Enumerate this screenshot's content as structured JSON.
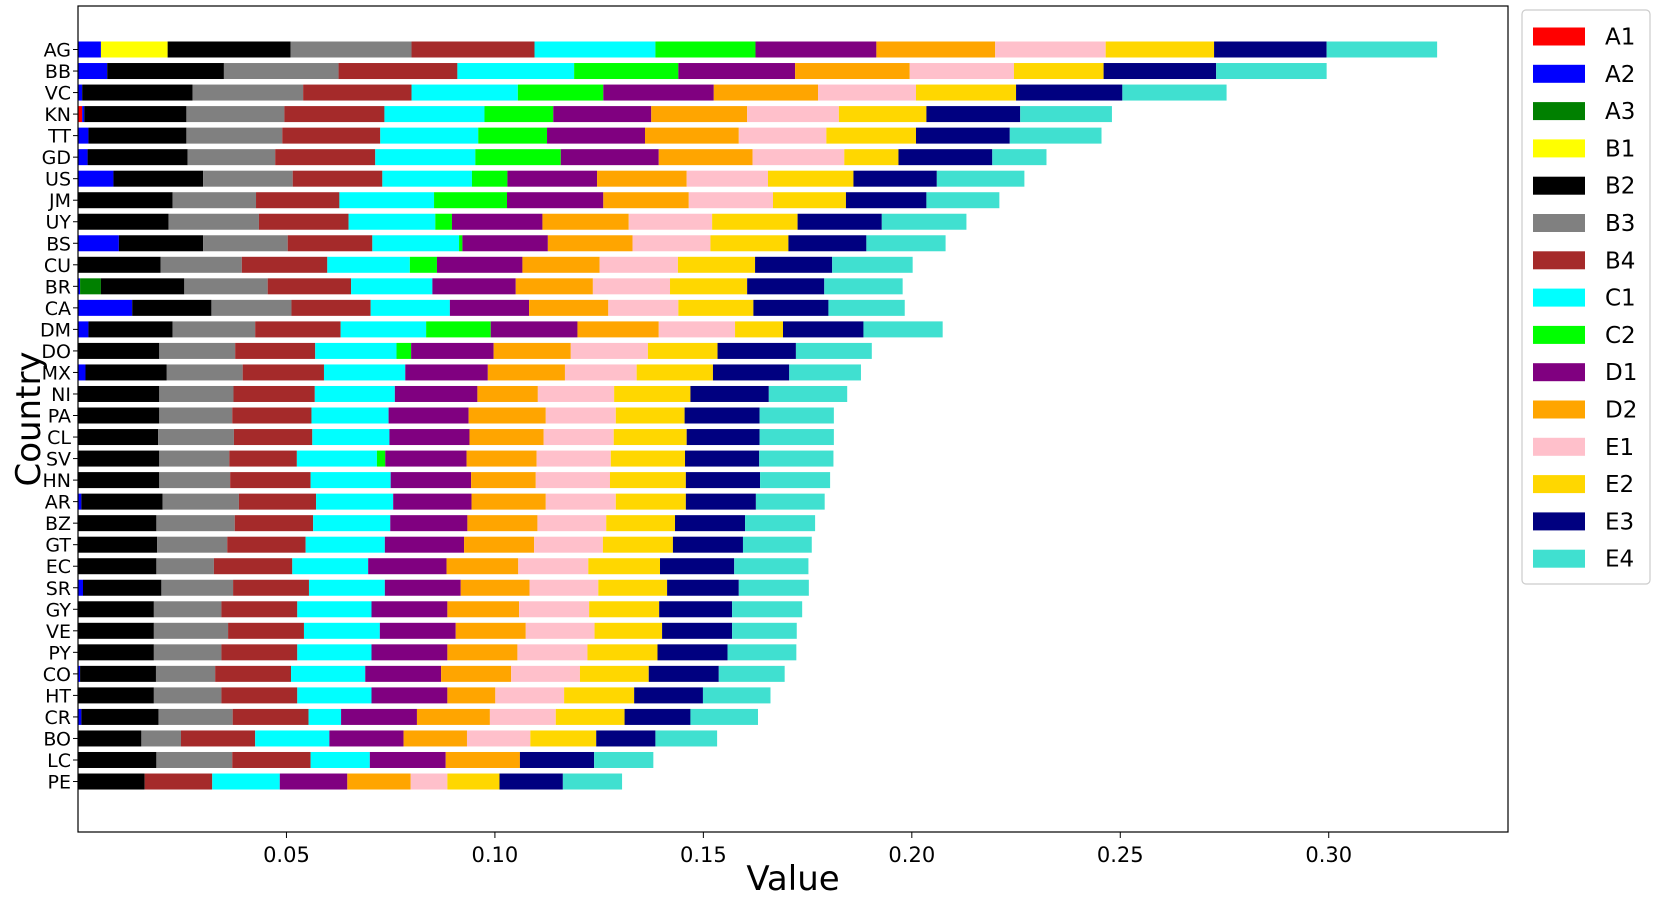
{
  "chart_data": {
    "type": "bar",
    "orientation": "horizontal",
    "stacked": true,
    "xlabel": "Value",
    "ylabel": "Country",
    "xlim": [
      0,
      0.343
    ],
    "xticks": [
      0.05,
      0.1,
      0.15,
      0.2,
      0.25,
      0.3
    ],
    "xtick_labels": [
      "0.05",
      "0.10",
      "0.15",
      "0.20",
      "0.25",
      "0.30"
    ],
    "legend_position": "top-right-outside",
    "series_names": [
      "A1",
      "A2",
      "A3",
      "B1",
      "B2",
      "B3",
      "B4",
      "C1",
      "C2",
      "D1",
      "D2",
      "E1",
      "E2",
      "E3",
      "E4"
    ],
    "colors": [
      "#ff0000",
      "#0000ff",
      "#008000",
      "#ffff00",
      "#000000",
      "#808080",
      "#a52a2a",
      "#00ffff",
      "#00ff00",
      "#800080",
      "#ffa500",
      "#ffc0cb",
      "#ffd700",
      "#000080",
      "#40e0d0"
    ],
    "categories": [
      "AG",
      "BB",
      "VC",
      "KN",
      "TT",
      "GD",
      "US",
      "JM",
      "UY",
      "BS",
      "CU",
      "BR",
      "CA",
      "DM",
      "DO",
      "MX",
      "NI",
      "PA",
      "CL",
      "SV",
      "HN",
      "AR",
      "BZ",
      "GT",
      "EC",
      "SR",
      "GY",
      "VE",
      "PY",
      "CO",
      "HT",
      "CR",
      "BO",
      "LC",
      "PE"
    ],
    "data": [
      [
        0,
        0.0055,
        0,
        0.016,
        0.0295,
        0.029,
        0.0295,
        0.029,
        0.024,
        0.029,
        0.0285,
        0.0265,
        0.026,
        0.027,
        0.0265
      ],
      [
        0,
        0.007,
        0,
        0,
        0.028,
        0.0275,
        0.0285,
        0.028,
        0.025,
        0.028,
        0.0275,
        0.025,
        0.0215,
        0.027,
        0.0265
      ],
      [
        0,
        0.001,
        0,
        0,
        0.0265,
        0.0265,
        0.026,
        0.0255,
        0.0205,
        0.0265,
        0.025,
        0.0235,
        0.024,
        0.0255,
        0.025
      ],
      [
        0.001,
        0.0005,
        0,
        0,
        0.0245,
        0.0235,
        0.024,
        0.024,
        0.0165,
        0.0235,
        0.023,
        0.022,
        0.021,
        0.0225,
        0.022
      ],
      [
        0,
        0.0025,
        0,
        0,
        0.0235,
        0.023,
        0.0235,
        0.0235,
        0.0165,
        0.0235,
        0.0225,
        0.021,
        0.0215,
        0.0225,
        0.022
      ],
      [
        0,
        0.0023,
        0,
        0,
        0.024,
        0.021,
        0.024,
        0.024,
        0.0205,
        0.0235,
        0.0225,
        0.022,
        0.013,
        0.0225,
        0.013
      ],
      [
        0,
        0.0085,
        0,
        0,
        0.0215,
        0.0215,
        0.0215,
        0.0215,
        0.0085,
        0.0215,
        0.0215,
        0.0195,
        0.0205,
        0.02,
        0.021
      ],
      [
        0,
        0,
        0,
        0,
        0.0227,
        0.02,
        0.02,
        0.0227,
        0.0175,
        0.0231,
        0.0205,
        0.0202,
        0.0175,
        0.0193,
        0.0175
      ],
      [
        0,
        0,
        0,
        0,
        0.0217,
        0.0217,
        0.0215,
        0.0208,
        0.004,
        0.0217,
        0.0207,
        0.02,
        0.0205,
        0.0202,
        0.0203
      ],
      [
        0,
        0.0098,
        0,
        0,
        0.0202,
        0.0203,
        0.0203,
        0.0208,
        0.0008,
        0.0205,
        0.0203,
        0.0187,
        0.0187,
        0.0187,
        0.019
      ],
      [
        0,
        0,
        0,
        0,
        0.0198,
        0.0195,
        0.0205,
        0.0198,
        0.0065,
        0.0205,
        0.0185,
        0.0188,
        0.0185,
        0.0185,
        0.0193
      ],
      [
        0,
        0.0005,
        0.005,
        0,
        0.02,
        0.02,
        0.02,
        0.0195,
        0,
        0.02,
        0.0185,
        0.0185,
        0.0185,
        0.0185,
        0.0188
      ],
      [
        0,
        0.013,
        0,
        0,
        0.019,
        0.0192,
        0.019,
        0.019,
        0,
        0.019,
        0.019,
        0.0168,
        0.018,
        0.018,
        0.0183
      ],
      [
        0,
        0.0025,
        0,
        0,
        0.0202,
        0.0198,
        0.0205,
        0.0205,
        0.0155,
        0.0208,
        0.0195,
        0.0183,
        0.0115,
        0.0193,
        0.019
      ],
      [
        0,
        0,
        0,
        0,
        0.0195,
        0.0182,
        0.0192,
        0.0195,
        0.0035,
        0.0198,
        0.0185,
        0.0185,
        0.0167,
        0.0188,
        0.0182
      ],
      [
        0,
        0.0018,
        0,
        0,
        0.0195,
        0.0182,
        0.0195,
        0.0195,
        0,
        0.0198,
        0.0185,
        0.0172,
        0.0183,
        0.0183,
        0.0172
      ],
      [
        0,
        0,
        0,
        0,
        0.0195,
        0.0178,
        0.0195,
        0.0192,
        0,
        0.0198,
        0.0145,
        0.0183,
        0.0183,
        0.0188,
        0.0188
      ],
      [
        0,
        0,
        0,
        0,
        0.0195,
        0.0175,
        0.019,
        0.0185,
        0,
        0.0192,
        0.0185,
        0.0168,
        0.0165,
        0.018,
        0.0178
      ],
      [
        0,
        0,
        0,
        0,
        0.0192,
        0.0182,
        0.0188,
        0.0185,
        0,
        0.0192,
        0.0178,
        0.0168,
        0.0175,
        0.0175,
        0.0178
      ],
      [
        0,
        0,
        0,
        0,
        0.0195,
        0.0168,
        0.0162,
        0.0192,
        0.002,
        0.0195,
        0.0168,
        0.0178,
        0.0178,
        0.0178,
        0.0178
      ],
      [
        0,
        0,
        0,
        0,
        0.0195,
        0.017,
        0.0193,
        0.0192,
        0,
        0.0193,
        0.0155,
        0.0178,
        0.0182,
        0.0178,
        0.0168
      ],
      [
        0,
        0.0008,
        0,
        0,
        0.0195,
        0.0183,
        0.0185,
        0.0185,
        0,
        0.0188,
        0.0178,
        0.0168,
        0.0168,
        0.0168,
        0.0165
      ],
      [
        0,
        0,
        0,
        0,
        0.0188,
        0.0188,
        0.0188,
        0.0185,
        0,
        0.0185,
        0.0168,
        0.0165,
        0.0165,
        0.0168,
        0.0168
      ],
      [
        0,
        0,
        0,
        0,
        0.019,
        0.0168,
        0.0188,
        0.019,
        0,
        0.019,
        0.0168,
        0.0165,
        0.0168,
        0.0168,
        0.0165
      ],
      [
        0,
        0,
        0,
        0,
        0.0188,
        0.0138,
        0.0188,
        0.0182,
        0,
        0.0188,
        0.0172,
        0.0168,
        0.0172,
        0.0178,
        0.0178
      ],
      [
        0,
        0.0012,
        0,
        0,
        0.0188,
        0.0172,
        0.0182,
        0.0182,
        0,
        0.0182,
        0.0165,
        0.0165,
        0.0165,
        0.0172,
        0.0168
      ],
      [
        0,
        0,
        0,
        0,
        0.0182,
        0.0162,
        0.0182,
        0.0178,
        0,
        0.0182,
        0.0172,
        0.0168,
        0.0168,
        0.0175,
        0.0168
      ],
      [
        0,
        0,
        0,
        0,
        0.0182,
        0.0178,
        0.0182,
        0.0182,
        0,
        0.0182,
        0.0168,
        0.0165,
        0.0162,
        0.0168,
        0.0155
      ],
      [
        0,
        0,
        0,
        0,
        0.0182,
        0.0162,
        0.0182,
        0.0178,
        0,
        0.0182,
        0.0168,
        0.0168,
        0.0168,
        0.0168,
        0.0165
      ],
      [
        0,
        0.0005,
        0,
        0,
        0.0182,
        0.0142,
        0.0182,
        0.0178,
        0,
        0.0182,
        0.0168,
        0.0165,
        0.0165,
        0.0168,
        0.0158
      ],
      [
        0,
        0,
        0,
        0,
        0.0182,
        0.0162,
        0.0182,
        0.0178,
        0,
        0.0182,
        0.0115,
        0.0165,
        0.0168,
        0.0165,
        0.0162
      ],
      [
        0,
        0.0008,
        0,
        0,
        0.0185,
        0.0178,
        0.0182,
        0.0078,
        0,
        0.0182,
        0.0175,
        0.0158,
        0.0165,
        0.0158,
        0.0162
      ],
      [
        0,
        0,
        0,
        0,
        0.0152,
        0.0095,
        0.0178,
        0.0178,
        0,
        0.0178,
        0.0152,
        0.0152,
        0.0158,
        0.0142,
        0.0148
      ],
      [
        0,
        0,
        0,
        0,
        0.0188,
        0.0182,
        0.0188,
        0.0142,
        0,
        0.0182,
        0.0178,
        0,
        0,
        0.0178,
        0.0142
      ],
      [
        0,
        0,
        0,
        0,
        0.016,
        0,
        0.0162,
        0.0162,
        0,
        0.0162,
        0.0152,
        0.0088,
        0.0125,
        0.0152,
        0.0142
      ]
    ]
  }
}
